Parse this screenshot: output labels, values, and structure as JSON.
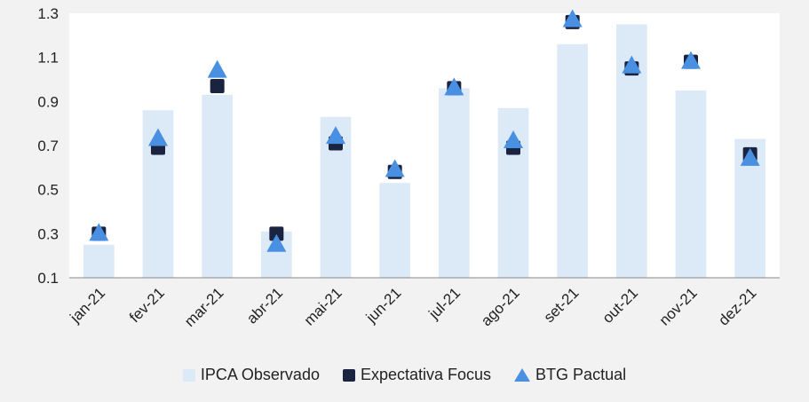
{
  "chart_data": {
    "type": "bar",
    "categories": [
      "jan-21",
      "fev-21",
      "mar-21",
      "abr-21",
      "mai-21",
      "jun-21",
      "jul-21",
      "ago-21",
      "set-21",
      "out-21",
      "nov-21",
      "dez-21"
    ],
    "ylim": [
      0.1,
      1.3
    ],
    "yticks": [
      "0.1",
      "0.3",
      "0.5",
      "0.7",
      "0.9",
      "1.1",
      "1.3"
    ],
    "grid": false,
    "legend_position": "bottom",
    "series": [
      {
        "name": "IPCA Observado",
        "kind": "bar",
        "color": "#dce9f7",
        "values": [
          0.25,
          0.86,
          0.93,
          0.31,
          0.83,
          0.53,
          0.96,
          0.87,
          1.16,
          1.25,
          0.95,
          0.73
        ]
      },
      {
        "name": "Expectativa Focus",
        "kind": "square",
        "color": "#1a2340",
        "values": [
          0.3,
          0.69,
          0.97,
          0.3,
          0.71,
          0.58,
          0.96,
          0.69,
          1.26,
          1.05,
          1.08,
          0.66
        ]
      },
      {
        "name": "BTG Pactual",
        "kind": "triangle",
        "color": "#4a90e2",
        "values": [
          0.3,
          0.73,
          1.04,
          0.25,
          0.74,
          0.59,
          0.96,
          0.72,
          1.27,
          1.06,
          1.08,
          0.64
        ]
      }
    ]
  }
}
